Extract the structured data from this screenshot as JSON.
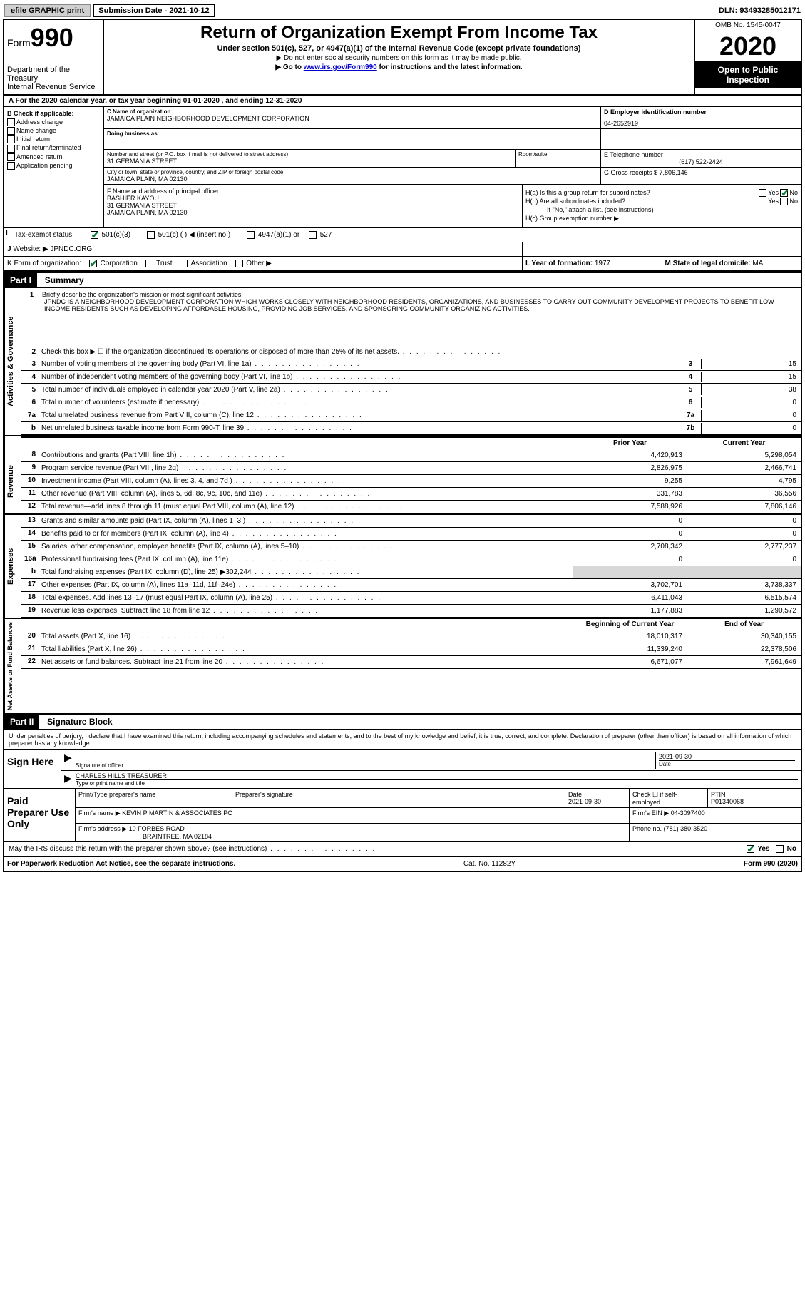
{
  "topbar": {
    "efile": "efile GRAPHIC print",
    "submission": "Submission Date - 2021-10-12",
    "dln": "DLN: 93493285012171"
  },
  "header": {
    "form_prefix": "Form",
    "form_number": "990",
    "dept": "Department of the Treasury\nInternal Revenue Service",
    "title": "Return of Organization Exempt From Income Tax",
    "subtitle": "Under section 501(c), 527, or 4947(a)(1) of the Internal Revenue Code (except private foundations)",
    "note1": "▶ Do not enter social security numbers on this form as it may be made public.",
    "note2_pre": "▶ Go to ",
    "note2_link": "www.irs.gov/Form990",
    "note2_post": " for instructions and the latest information.",
    "omb": "OMB No. 1545-0047",
    "year": "2020",
    "open": "Open to Public Inspection"
  },
  "row_a": "A For the 2020 calendar year, or tax year beginning 01-01-2020    , and ending 12-31-2020",
  "section_b": {
    "hdr": "B Check if applicable:",
    "opts": [
      "Address change",
      "Name change",
      "Initial return",
      "Final return/terminated",
      "Amended return",
      "Application pending"
    ]
  },
  "section_c": {
    "lbl": "C Name of organization",
    "name": "JAMAICA PLAIN NEIGHBORHOOD DEVELOPMENT CORPORATION",
    "dba_lbl": "Doing business as",
    "dba": "",
    "street_lbl": "Number and street (or P.O. box if mail is not delivered to street address)",
    "street": "31 GERMANIA STREET",
    "room_lbl": "Room/suite",
    "city_lbl": "City or town, state or province, country, and ZIP or foreign postal code",
    "city": "JAMAICA PLAIN, MA  02130"
  },
  "section_d": {
    "lbl": "D Employer identification number",
    "val": "04-2652919"
  },
  "section_e": {
    "lbl": "E Telephone number",
    "val": "(617) 522-2424"
  },
  "section_g": {
    "lbl": "G Gross receipts $",
    "val": "7,806,146"
  },
  "section_f": {
    "lbl": "F Name and address of principal officer:",
    "name": "BASHIER KAYOU",
    "street": "31 GERMANIA STREET",
    "city": "JAMAICA PLAIN, MA  02130"
  },
  "section_h": {
    "ha": "H(a)  Is this a group return for subordinates?",
    "hb": "H(b)  Are all subordinates included?",
    "hb_note": "If \"No,\" attach a list. (see instructions)",
    "hc": "H(c)  Group exemption number ▶",
    "yes": "Yes",
    "no": "No"
  },
  "row_i": {
    "lbl": "Tax-exempt status:",
    "opts": [
      "501(c)(3)",
      "501(c) (   ) ◀ (insert no.)",
      "4947(a)(1) or",
      "527"
    ]
  },
  "row_j": {
    "lbl": "Website: ▶",
    "val": "JPNDC.ORG"
  },
  "row_k": {
    "lbl": "K Form of organization:",
    "opts": [
      "Corporation",
      "Trust",
      "Association",
      "Other ▶"
    ],
    "l_lbl": "L Year of formation:",
    "l_val": "1977",
    "m_lbl": "M State of legal domicile:",
    "m_val": "MA"
  },
  "part1": {
    "hdr": "Part I",
    "title": "Summary"
  },
  "mission": {
    "num": "1",
    "lbl": "Briefly describe the organization's mission or most significant activities:",
    "text": "JPNDC IS A NEIGHBORHOOD DEVELOPMENT CORPORATION WHICH WORKS CLOSELY WITH NEIGHBORHOOD RESIDENTS, ORGANIZATIONS, AND BUSINESSES TO CARRY OUT COMMUNITY DEVELOPMENT PROJECTS TO BENEFIT LOW INCOME RESIDENTS SUCH AS DEVELOPING AFFORDABLE HOUSING, PROVIDING JOB SERVICES, AND SPONSORING COMMUNITY ORGANIZING ACTIVITIES."
  },
  "gov_lines": [
    {
      "n": "2",
      "t": "Check this box ▶ ☐ if the organization discontinued its operations or disposed of more than 25% of its net assets.",
      "box": "",
      "v": ""
    },
    {
      "n": "3",
      "t": "Number of voting members of the governing body (Part VI, line 1a)",
      "box": "3",
      "v": "15"
    },
    {
      "n": "4",
      "t": "Number of independent voting members of the governing body (Part VI, line 1b)",
      "box": "4",
      "v": "15"
    },
    {
      "n": "5",
      "t": "Total number of individuals employed in calendar year 2020 (Part V, line 2a)",
      "box": "5",
      "v": "38"
    },
    {
      "n": "6",
      "t": "Total number of volunteers (estimate if necessary)",
      "box": "6",
      "v": "0"
    },
    {
      "n": "7a",
      "t": "Total unrelated business revenue from Part VIII, column (C), line 12",
      "box": "7a",
      "v": "0"
    },
    {
      "n": "b",
      "t": "Net unrelated business taxable income from Form 990-T, line 39",
      "box": "7b",
      "v": "0"
    }
  ],
  "year_hdr": {
    "prior": "Prior Year",
    "current": "Current Year"
  },
  "revenue": [
    {
      "n": "8",
      "t": "Contributions and grants (Part VIII, line 1h)",
      "p": "4,420,913",
      "c": "5,298,054"
    },
    {
      "n": "9",
      "t": "Program service revenue (Part VIII, line 2g)",
      "p": "2,826,975",
      "c": "2,466,741"
    },
    {
      "n": "10",
      "t": "Investment income (Part VIII, column (A), lines 3, 4, and 7d )",
      "p": "9,255",
      "c": "4,795"
    },
    {
      "n": "11",
      "t": "Other revenue (Part VIII, column (A), lines 5, 6d, 8c, 9c, 10c, and 11e)",
      "p": "331,783",
      "c": "36,556"
    },
    {
      "n": "12",
      "t": "Total revenue—add lines 8 through 11 (must equal Part VIII, column (A), line 12)",
      "p": "7,588,926",
      "c": "7,806,146"
    }
  ],
  "expenses": [
    {
      "n": "13",
      "t": "Grants and similar amounts paid (Part IX, column (A), lines 1–3 )",
      "p": "0",
      "c": "0"
    },
    {
      "n": "14",
      "t": "Benefits paid to or for members (Part IX, column (A), line 4)",
      "p": "0",
      "c": "0"
    },
    {
      "n": "15",
      "t": "Salaries, other compensation, employee benefits (Part IX, column (A), lines 5–10)",
      "p": "2,708,342",
      "c": "2,777,237"
    },
    {
      "n": "16a",
      "t": "Professional fundraising fees (Part IX, column (A), line 11e)",
      "p": "0",
      "c": "0"
    },
    {
      "n": "b",
      "t": "Total fundraising expenses (Part IX, column (D), line 25) ▶302,244",
      "p": "",
      "c": "",
      "gray": true
    },
    {
      "n": "17",
      "t": "Other expenses (Part IX, column (A), lines 11a–11d, 11f–24e)",
      "p": "3,702,701",
      "c": "3,738,337"
    },
    {
      "n": "18",
      "t": "Total expenses. Add lines 13–17 (must equal Part IX, column (A), line 25)",
      "p": "6,411,043",
      "c": "6,515,574"
    },
    {
      "n": "19",
      "t": "Revenue less expenses. Subtract line 18 from line 12",
      "p": "1,177,883",
      "c": "1,290,572"
    }
  ],
  "net_hdr": {
    "begin": "Beginning of Current Year",
    "end": "End of Year"
  },
  "netassets": [
    {
      "n": "20",
      "t": "Total assets (Part X, line 16)",
      "p": "18,010,317",
      "c": "30,340,155"
    },
    {
      "n": "21",
      "t": "Total liabilities (Part X, line 26)",
      "p": "11,339,240",
      "c": "22,378,506"
    },
    {
      "n": "22",
      "t": "Net assets or fund balances. Subtract line 21 from line 20",
      "p": "6,671,077",
      "c": "7,961,649"
    }
  ],
  "vtabs": {
    "gov": "Activities & Governance",
    "rev": "Revenue",
    "exp": "Expenses",
    "net": "Net Assets or Fund Balances"
  },
  "part2": {
    "hdr": "Part II",
    "title": "Signature Block",
    "text": "Under penalties of perjury, I declare that I have examined this return, including accompanying schedules and statements, and to the best of my knowledge and belief, it is true, correct, and complete. Declaration of preparer (other than officer) is based on all information of which preparer has any knowledge."
  },
  "sign": {
    "label": "Sign Here",
    "sig_lbl": "Signature of officer",
    "date_lbl": "Date",
    "date": "2021-09-30",
    "name": "CHARLES HILLS  TREASURER",
    "name_lbl": "Type or print name and title"
  },
  "prep": {
    "label": "Paid Preparer Use Only",
    "print_lbl": "Print/Type preparer's name",
    "sig_lbl": "Preparer's signature",
    "date_lbl": "Date",
    "date": "2021-09-30",
    "self_lbl": "Check ☐ if self-employed",
    "ptin_lbl": "PTIN",
    "ptin": "P01340068",
    "firm_name_lbl": "Firm's name    ▶",
    "firm_name": "KEVIN P MARTIN & ASSOCIATES PC",
    "firm_ein_lbl": "Firm's EIN ▶",
    "firm_ein": "04-3097400",
    "firm_addr_lbl": "Firm's address ▶",
    "firm_addr": "10 FORBES ROAD",
    "firm_city": "BRAINTREE, MA  02184",
    "phone_lbl": "Phone no.",
    "phone": "(781) 380-3520"
  },
  "may_irs": "May the IRS discuss this return with the preparer shown above? (see instructions)",
  "footer": {
    "left": "For Paperwork Reduction Act Notice, see the separate instructions.",
    "mid": "Cat. No. 11282Y",
    "right_pre": "Form ",
    "right_form": "990",
    "right_post": " (2020)"
  }
}
